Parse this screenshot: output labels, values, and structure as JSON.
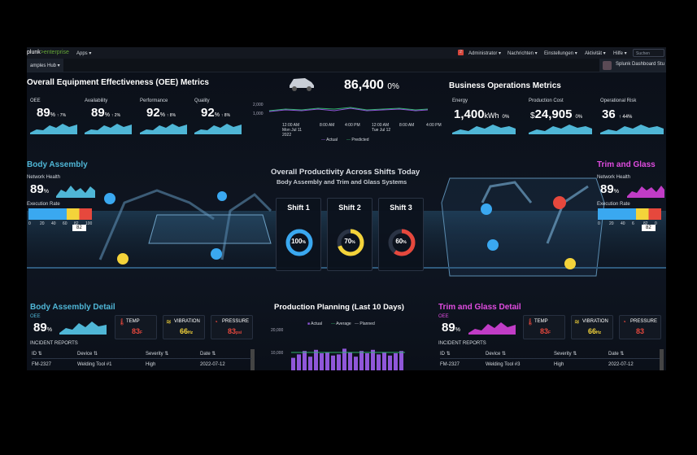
{
  "topbar": {
    "logo_a": "plunk",
    "logo_b": ">enterprise",
    "apps": "Apps ▾",
    "badge": "2",
    "admin": "Administrator ▾",
    "messages": "Nachrichten ▾",
    "settings": "Einstellungen ▾",
    "activity": "Aktivität ▾",
    "help": "Hilfe ▾",
    "search_placeholder": "Suchen"
  },
  "subbar": {
    "hub": "amples Hub ▾",
    "app": "Splunk Dashboard Stu"
  },
  "oee": {
    "title": "Overall Equipment Effectiveness (OEE) Metrics",
    "items": [
      {
        "label": "OEE",
        "value": "89",
        "unit": "%",
        "delta": "↑ 7%"
      },
      {
        "label": "Availability",
        "value": "89",
        "unit": "%",
        "delta": "↑ 2%"
      },
      {
        "label": "Performance",
        "value": "92",
        "unit": "%",
        "delta": "↑ 8%"
      },
      {
        "label": "Quality",
        "value": "92",
        "unit": "%",
        "delta": "↑ 8%"
      }
    ]
  },
  "production": {
    "value": "86,400",
    "pct": "0%",
    "y_labels": [
      "2,000",
      "1,000"
    ],
    "x_labels": [
      "12:00 AM\nMon Jul 11\n2022",
      "8:00 AM",
      "4:00 PM",
      "12:00 AM\nTue Jul 12",
      "8:00 AM",
      "4:00 PM"
    ],
    "legend_actual": "Actual",
    "legend_predicted": "Predicted"
  },
  "business": {
    "title": "Business Operations Metrics",
    "items": [
      {
        "label": "Energy",
        "value": "1,400",
        "unit": "kWh",
        "delta": "0%"
      },
      {
        "label": "Production Cost",
        "value": "24,905",
        "prefix": "$",
        "delta": "0%"
      },
      {
        "label": "Operational Risk",
        "value": "36",
        "delta": "↑ 44%"
      }
    ]
  },
  "body_assembly": {
    "title": "Body Assembly",
    "network_label": "Network Health",
    "network_value": "89",
    "unit": "%",
    "exec_label": "Execution Rate",
    "ticks": [
      "0",
      "20",
      "40",
      "60",
      "82",
      "100"
    ],
    "marker": "82"
  },
  "trim_glass": {
    "title": "Trim and Glass",
    "network_label": "Network Health",
    "network_value": "89",
    "unit": "%",
    "exec_label": "Execution Rate",
    "ticks": [
      "0",
      "20",
      "40",
      "6",
      "82",
      "0"
    ],
    "marker": "82"
  },
  "center": {
    "title": "Overall Productivity Across Shifts Today",
    "subtitle": "Body Assembly and Trim and Glass Systems"
  },
  "shifts": [
    {
      "label": "Shift 1",
      "value": "100",
      "unit": "%",
      "color": "#3aa8f0",
      "pct": 1.0
    },
    {
      "label": "Shift 2",
      "value": "70",
      "unit": "%",
      "color": "#f4d33a",
      "pct": 0.7
    },
    {
      "label": "Shift 3",
      "value": "60",
      "unit": "%",
      "color": "#e6483d",
      "pct": 0.6
    }
  ],
  "ba_detail": {
    "title": "Body Assembly Detail",
    "oee_label": "OEE",
    "oee_value": "89",
    "unit": "%",
    "temp_label": "TEMP",
    "temp_value": "83",
    "temp_unit": "F",
    "vib_label": "VIBRATION",
    "vib_value": "66",
    "vib_unit": "Hz",
    "press_label": "PRESSURE",
    "press_value": "83",
    "press_unit": "psi",
    "incidents": "INCIDENT REPORTS",
    "cols": [
      "ID ⇅",
      "Device ⇅",
      "Severity ⇅",
      "Date ⇅"
    ],
    "row": [
      "FM-2327",
      "Welding Tool #1",
      "High",
      "2022-07-12"
    ]
  },
  "planning": {
    "title": "Production Planning (Last 10 Days)",
    "legend": [
      "Actual",
      "Average",
      "Planned"
    ],
    "y_labels": [
      "20,000",
      "10,000"
    ],
    "bars": [
      0.55,
      0.7,
      0.85,
      0.6,
      0.9,
      0.75,
      0.8,
      0.65,
      0.7,
      0.95,
      0.8,
      0.6,
      0.85,
      0.75,
      0.9,
      0.7,
      0.8,
      0.65,
      0.75,
      0.85
    ]
  },
  "tg_detail": {
    "title": "Trim and Glass Detail",
    "oee_label": "OEE",
    "oee_value": "89",
    "unit": "%",
    "temp_label": "TEMP",
    "temp_value": "83",
    "temp_unit": "F",
    "vib_label": "VIBRATION",
    "vib_value": "66",
    "vib_unit": "Hz",
    "press_label": "PRESSURE",
    "press_value": "83",
    "press_unit": "",
    "incidents": "INCIDENT REPORTS",
    "cols": [
      "ID ⇅",
      "Device ⇅",
      "Severity ⇅",
      "Date ⇅"
    ],
    "row": [
      "FM-2327",
      "Welding Tool #3",
      "High",
      "2022-07-12"
    ]
  },
  "colors": {
    "teal": "#4fb6d6",
    "magenta": "#c03cc6",
    "blue_title": "#4fb6d6",
    "pink_title": "#e04ce0",
    "temp": "#e6483d",
    "vib": "#f4d33a",
    "purple": "#8f57d9"
  }
}
